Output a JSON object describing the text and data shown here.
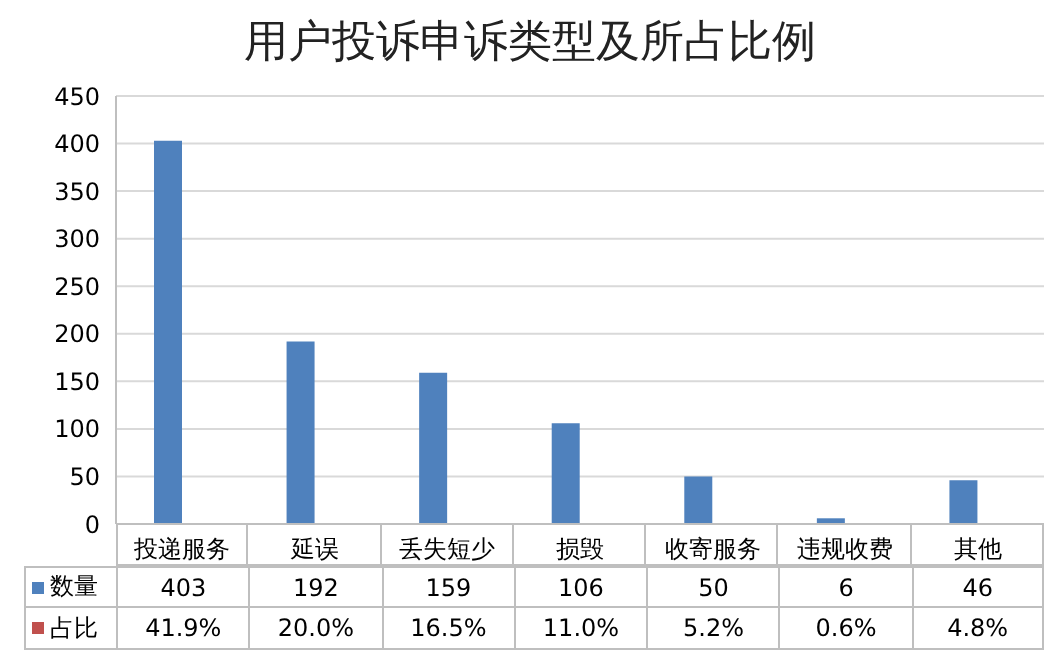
{
  "chart_data": {
    "type": "bar",
    "title": "用户投诉申诉类型及所占比例",
    "categories": [
      "投递服务",
      "延误",
      "丢失短少",
      "损毁",
      "收寄服务",
      "违规收费",
      "其他"
    ],
    "series": [
      {
        "name": "数量",
        "color": "#4f81bd",
        "values": [
          403,
          192,
          159,
          106,
          50,
          6,
          46
        ],
        "value_labels": [
          "403",
          "192",
          "159",
          "106",
          "50",
          "6",
          "46"
        ]
      },
      {
        "name": "占比",
        "color": "#c0504d",
        "values": [
          0.419,
          0.2,
          0.165,
          0.11,
          0.052,
          0.006,
          0.048
        ],
        "value_labels": [
          "41.9%",
          "20.0%",
          "16.5%",
          "11.0%",
          "5.2%",
          "0.6%",
          "4.8%"
        ]
      }
    ],
    "ylim": [
      0,
      450
    ],
    "yticks": [
      0,
      50,
      100,
      150,
      200,
      250,
      300,
      350,
      400,
      450
    ],
    "grid": "y",
    "legend": "bottom"
  }
}
